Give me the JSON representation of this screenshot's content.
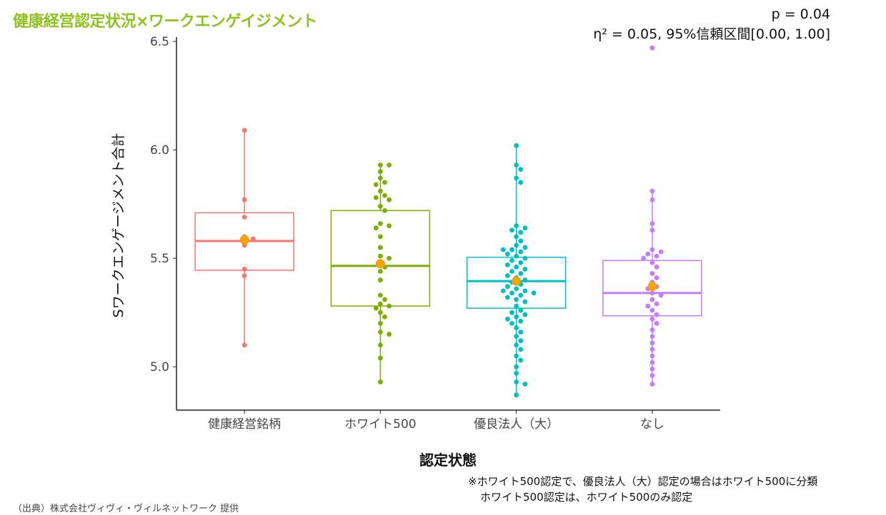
{
  "slide": {
    "title": "健康経営認定状況×ワークエンゲイジメント",
    "stats_line1": "p = 0.04",
    "stats_line2": "η²  = 0.05, 95%信頼区間[0.00, 1.00]",
    "footnote_line1": "※ホワイト500認定で、優良法人（大）認定の場合はホワイト500に分類",
    "footnote_line2": "ホワイト500認定は、ホワイト500のみ認定",
    "source": "（出典）株式会社ヴィヴィ・ヴィルネットワーク 提供"
  },
  "chart_data": {
    "type": "box",
    "xlabel": "認定状態",
    "ylabel": "Sワークエンゲージメント合計",
    "ylim": [
      4.8,
      6.52
    ],
    "yticks": [
      "5.0",
      "5.5",
      "6.0",
      "6.5"
    ],
    "categories": [
      "健康経営銘柄",
      "ホワイト500",
      "優良法人（大）",
      "なし"
    ],
    "mean_color": "#f5a300",
    "groups": [
      {
        "name": "健康経営銘柄",
        "color": "#f8766d",
        "whisker_low": 5.1,
        "q1": 5.445,
        "median": 5.58,
        "q3": 5.71,
        "whisker_high": 6.09,
        "mean": 5.585,
        "points": [
          6.09,
          5.77,
          5.69,
          5.6,
          5.59,
          5.56,
          5.45,
          5.42,
          5.1
        ]
      },
      {
        "name": "ホワイト500",
        "color": "#7cae00",
        "whisker_low": 4.93,
        "q1": 5.28,
        "median": 5.465,
        "q3": 5.72,
        "whisker_high": 5.93,
        "mean": 5.475,
        "points": [
          5.93,
          5.93,
          5.9,
          5.87,
          5.85,
          5.84,
          5.81,
          5.79,
          5.78,
          5.77,
          5.74,
          5.72,
          5.66,
          5.65,
          5.64,
          5.6,
          5.55,
          5.51,
          5.5,
          5.48,
          5.46,
          5.44,
          5.4,
          5.33,
          5.31,
          5.29,
          5.28,
          5.27,
          5.25,
          5.23,
          5.2,
          5.16,
          5.15,
          5.1,
          5.04,
          4.93
        ]
      },
      {
        "name": "優良法人（大）",
        "color": "#00bfc4",
        "whisker_low": 4.87,
        "q1": 5.27,
        "median": 5.395,
        "q3": 5.505,
        "whisker_high": 6.02,
        "mean": 5.395,
        "points": [
          6.02,
          5.93,
          5.91,
          5.87,
          5.85,
          5.65,
          5.64,
          5.63,
          5.62,
          5.6,
          5.58,
          5.56,
          5.55,
          5.54,
          5.54,
          5.53,
          5.52,
          5.51,
          5.5,
          5.49,
          5.48,
          5.47,
          5.46,
          5.45,
          5.44,
          5.43,
          5.42,
          5.41,
          5.4,
          5.39,
          5.38,
          5.37,
          5.36,
          5.35,
          5.35,
          5.34,
          5.34,
          5.33,
          5.32,
          5.31,
          5.3,
          5.28,
          5.26,
          5.25,
          5.24,
          5.23,
          5.22,
          5.21,
          5.2,
          5.18,
          5.16,
          5.14,
          5.12,
          5.1,
          5.08,
          5.05,
          5.03,
          5.0,
          4.97,
          4.93,
          4.92,
          4.87
        ]
      },
      {
        "name": "なし",
        "color": "#c77cff",
        "whisker_low": 4.92,
        "q1": 5.235,
        "median": 5.34,
        "q3": 5.49,
        "whisker_high": 5.81,
        "mean": 5.37,
        "points": [
          6.47,
          5.81,
          5.77,
          5.66,
          5.63,
          5.54,
          5.53,
          5.52,
          5.51,
          5.5,
          5.48,
          5.46,
          5.43,
          5.41,
          5.39,
          5.37,
          5.36,
          5.34,
          5.33,
          5.31,
          5.29,
          5.28,
          5.26,
          5.24,
          5.22,
          5.2,
          5.17,
          5.14,
          5.11,
          5.08,
          5.05,
          5.02,
          4.99,
          4.96,
          4.92
        ]
      }
    ]
  }
}
